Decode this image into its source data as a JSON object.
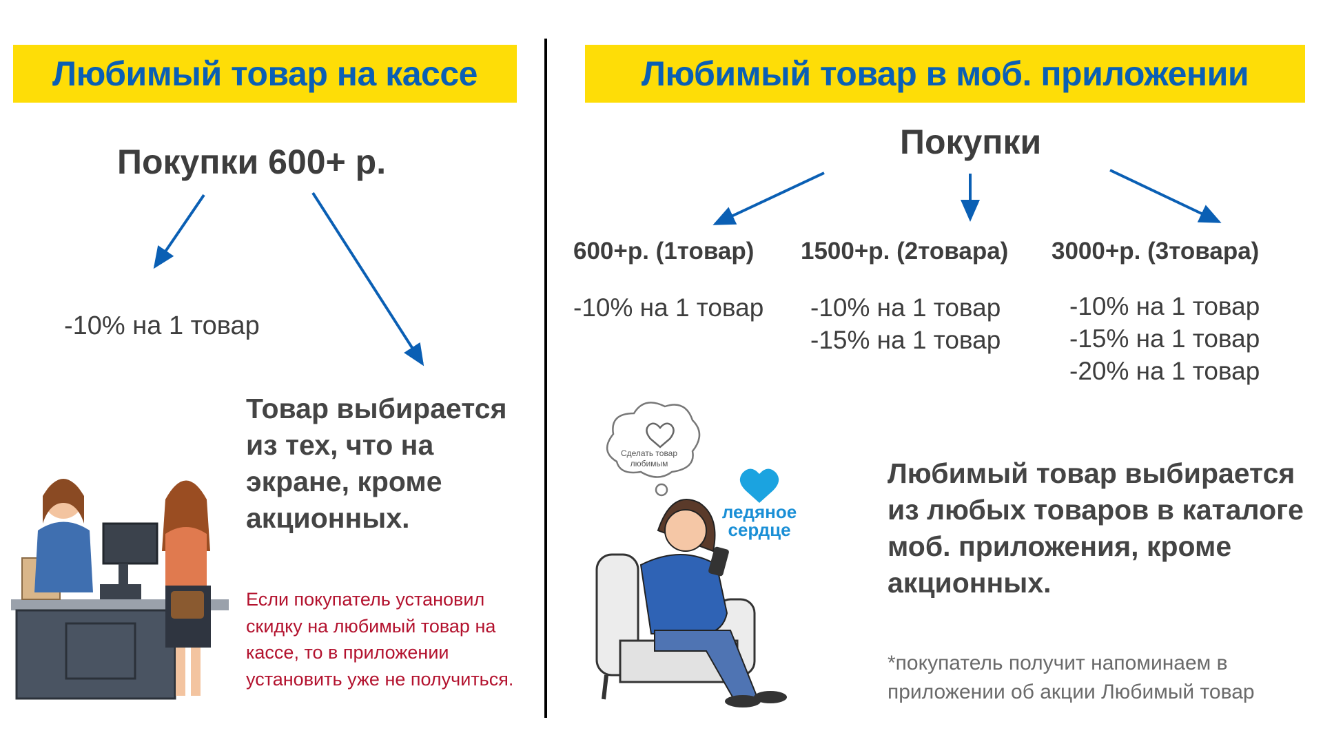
{
  "left": {
    "banner_title": "Любимый товар на кассе",
    "purchase_heading": "Покупки 600+ р.",
    "discount": "-10% на 1 товар",
    "description_lines": [
      "Товар выбирается",
      "из тех, что на",
      "экране, кроме",
      "акционных."
    ],
    "warning_lines": [
      "Если покупатель установил",
      "скидку на любимый товар на",
      "кассе, то в приложении",
      "установить уже не получиться."
    ]
  },
  "right": {
    "banner_title": "Любимый товар в моб. приложении",
    "purchase_heading": "Покупки",
    "tiers": [
      {
        "label": "600+р. (1товар)",
        "discounts": [
          "-10% на 1 товар"
        ]
      },
      {
        "label": "1500+р. (2товара)",
        "discounts": [
          "-10% на 1 товар",
          "-15% на 1 товар"
        ]
      },
      {
        "label": "3000+р. (3товара)",
        "discounts": [
          "-10% на 1 товар",
          "-15% на 1 товар",
          "-20% на 1 товар"
        ]
      }
    ],
    "thought_bubble_lines": [
      "Сделать товар",
      "любимым"
    ],
    "logo_lines": [
      "ледяное",
      "сердце"
    ],
    "description_lines": [
      "Любимый товар выбирается",
      "из любых товаров в каталоге",
      "моб. приложения, кроме",
      "акционных."
    ],
    "footnote_lines": [
      "*покупатель получит напоминаем в",
      "приложении об акции Любимый товар"
    ]
  },
  "colors": {
    "banner": "#fedd07",
    "accent_blue": "#0a5fb4",
    "warning_red": "#b3122e",
    "logo_blue": "#1a8fd6"
  },
  "icons": [
    "heart-icon",
    "arrow-icon"
  ]
}
